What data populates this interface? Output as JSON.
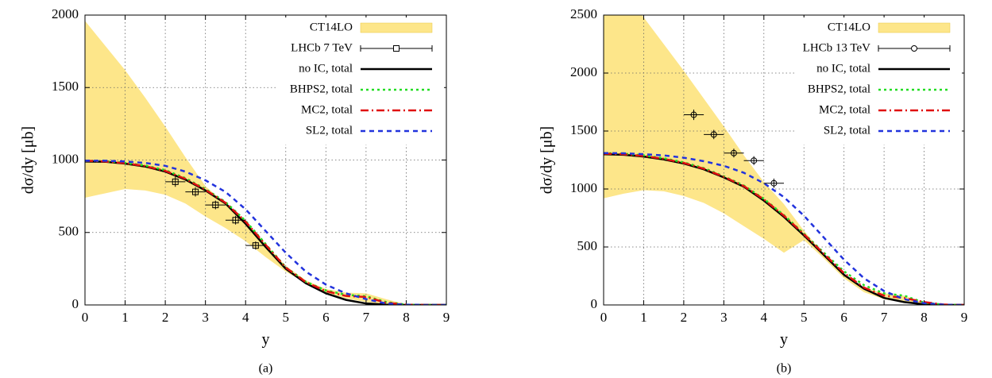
{
  "chart_data": [
    {
      "type": "line",
      "caption": "(a)",
      "x_label": "y",
      "y_label": "dσ/dy  [μb]",
      "xlim": [
        0,
        9
      ],
      "ylim": [
        0,
        2000
      ],
      "xticks": [
        0,
        1,
        2,
        3,
        4,
        5,
        6,
        7,
        8,
        9
      ],
      "yticks": [
        0,
        500,
        1000,
        1500,
        2000
      ],
      "grid": true,
      "legend": "upper right",
      "x": [
        0,
        0.5,
        1,
        1.5,
        2,
        2.5,
        3,
        3.5,
        4,
        4.5,
        5,
        5.5,
        6,
        6.5,
        7,
        7.5,
        8,
        8.5,
        9
      ],
      "band": {
        "name": "CT14LO",
        "color": "#fde68a",
        "upper": [
          1960,
          1790,
          1620,
          1430,
          1230,
          1020,
          820,
          700,
          580,
          420,
          270,
          170,
          110,
          85,
          80,
          40,
          5,
          0,
          0
        ],
        "lower": [
          740,
          770,
          800,
          790,
          760,
          700,
          610,
          530,
          440,
          330,
          230,
          150,
          85,
          45,
          20,
          5,
          0,
          0,
          0
        ]
      },
      "points": {
        "name": "LHCb 7 TeV",
        "color": "#000000",
        "marker": "square",
        "x": [
          2.25,
          2.75,
          3.25,
          3.75,
          4.25
        ],
        "xerr": [
          0.25,
          0.25,
          0.25,
          0.25,
          0.25
        ],
        "values": [
          850,
          780,
          690,
          585,
          410
        ],
        "yerr": [
          35,
          32,
          30,
          30,
          28
        ]
      },
      "series": [
        {
          "name": "no IC, total",
          "color": "#000000",
          "style": "solid",
          "values": [
            990,
            988,
            975,
            955,
            920,
            865,
            790,
            700,
            560,
            400,
            250,
            150,
            80,
            35,
            10,
            2,
            0,
            0,
            0
          ]
        },
        {
          "name": "BHPS2, total",
          "color": "#22dd22",
          "style": "dotted",
          "values": [
            995,
            992,
            980,
            962,
            930,
            875,
            800,
            710,
            580,
            420,
            260,
            160,
            100,
            70,
            60,
            20,
            2,
            0,
            0
          ]
        },
        {
          "name": "MC2, total",
          "color": "#e01010",
          "style": "dashdot",
          "values": [
            995,
            990,
            978,
            958,
            925,
            870,
            795,
            705,
            575,
            415,
            258,
            158,
            95,
            62,
            55,
            15,
            2,
            0,
            0
          ]
        },
        {
          "name": "SL2, total",
          "color": "#2233dd",
          "style": "dashed",
          "values": [
            995,
            995,
            990,
            980,
            960,
            920,
            860,
            780,
            660,
            510,
            360,
            230,
            140,
            80,
            40,
            10,
            2,
            0,
            0
          ]
        }
      ]
    },
    {
      "type": "line",
      "caption": "(b)",
      "x_label": "y",
      "y_label": "dσ/dy [μb]",
      "xlim": [
        0,
        9
      ],
      "ylim": [
        0,
        2500
      ],
      "xticks": [
        0,
        1,
        2,
        3,
        4,
        5,
        6,
        7,
        8,
        9
      ],
      "yticks": [
        0,
        500,
        1000,
        1500,
        2000,
        2500
      ],
      "grid": true,
      "legend": "upper right",
      "x": [
        0,
        0.5,
        1,
        1.5,
        2,
        2.5,
        3,
        3.5,
        4,
        4.5,
        5,
        5.5,
        6,
        6.5,
        7,
        7.5,
        8,
        8.5,
        9
      ],
      "band": {
        "name": "CT14LO",
        "color": "#fde68a",
        "upper": [
          2950,
          2700,
          2480,
          2250,
          2020,
          1780,
          1540,
          1290,
          1060,
          870,
          640,
          440,
          270,
          150,
          100,
          80,
          20,
          2,
          0
        ],
        "lower": [
          920,
          960,
          990,
          980,
          940,
          880,
          790,
          680,
          570,
          450,
          560,
          400,
          230,
          110,
          50,
          20,
          3,
          0,
          0
        ]
      },
      "points": {
        "name": "LHCb 13 TeV",
        "color": "#000000",
        "marker": "circle",
        "x": [
          2.25,
          2.75,
          3.25,
          3.75,
          4.25
        ],
        "xerr": [
          0.25,
          0.25,
          0.25,
          0.25,
          0.25
        ],
        "values": [
          1640,
          1470,
          1310,
          1245,
          1050
        ],
        "yerr": [
          45,
          40,
          38,
          38,
          40
        ]
      },
      "series": [
        {
          "name": "no IC, total",
          "color": "#000000",
          "style": "solid",
          "values": [
            1300,
            1295,
            1280,
            1255,
            1220,
            1170,
            1100,
            1020,
            900,
            760,
            600,
            430,
            260,
            140,
            60,
            25,
            5,
            0,
            0
          ]
        },
        {
          "name": "BHPS2, total",
          "color": "#22dd22",
          "style": "dotted",
          "values": [
            1310,
            1305,
            1290,
            1265,
            1230,
            1180,
            1110,
            1030,
            915,
            775,
            615,
            450,
            290,
            170,
            100,
            80,
            20,
            2,
            0
          ]
        },
        {
          "name": "MC2, total",
          "color": "#e01010",
          "style": "dashdot",
          "values": [
            1305,
            1300,
            1285,
            1260,
            1225,
            1175,
            1105,
            1025,
            910,
            770,
            610,
            440,
            275,
            150,
            80,
            60,
            25,
            3,
            0
          ]
        },
        {
          "name": "SL2, total",
          "color": "#2233dd",
          "style": "dashed",
          "values": [
            1310,
            1308,
            1300,
            1290,
            1270,
            1240,
            1200,
            1140,
            1050,
            930,
            770,
            580,
            390,
            230,
            120,
            50,
            15,
            2,
            0
          ]
        }
      ]
    }
  ]
}
